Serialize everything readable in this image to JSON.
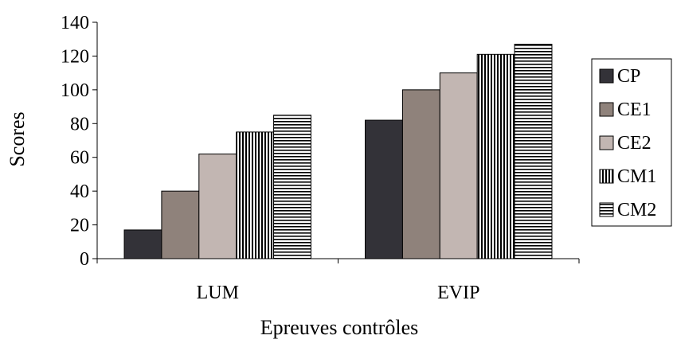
{
  "chart_data": {
    "type": "bar",
    "xlabel": "Epreuves contrôles",
    "ylabel": "Scores",
    "ylim": [
      0,
      140
    ],
    "yticks": [
      0,
      20,
      40,
      60,
      80,
      100,
      120,
      140
    ],
    "categories": [
      "LUM",
      "EVIP"
    ],
    "grid": false,
    "legend_position": "right",
    "series": [
      {
        "name": "CP",
        "values": [
          17,
          82
        ],
        "color": "#333238",
        "pattern": "solid"
      },
      {
        "name": "CE1",
        "values": [
          40,
          100
        ],
        "color": "#8f827b",
        "pattern": "solid"
      },
      {
        "name": "CE2",
        "values": [
          62,
          110
        ],
        "color": "#c2b6b2",
        "pattern": "solid"
      },
      {
        "name": "CM1",
        "values": [
          75,
          121
        ],
        "color": "#000000",
        "pattern": "vertical-stripes"
      },
      {
        "name": "CM2",
        "values": [
          85,
          127
        ],
        "color": "#000000",
        "pattern": "horizontal-stripes"
      }
    ]
  }
}
